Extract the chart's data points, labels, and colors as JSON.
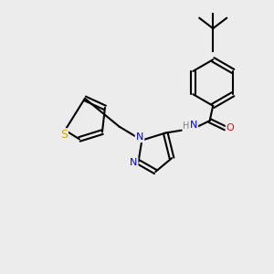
{
  "background_color": "#ececec",
  "bond_color": "#000000",
  "atom_colors": {
    "N": "#0000ff",
    "O": "#ff0000",
    "S": "#ccaa00",
    "H": "#808080",
    "C": "#000000"
  },
  "figsize": [
    3.0,
    3.0
  ],
  "dpi": 100
}
